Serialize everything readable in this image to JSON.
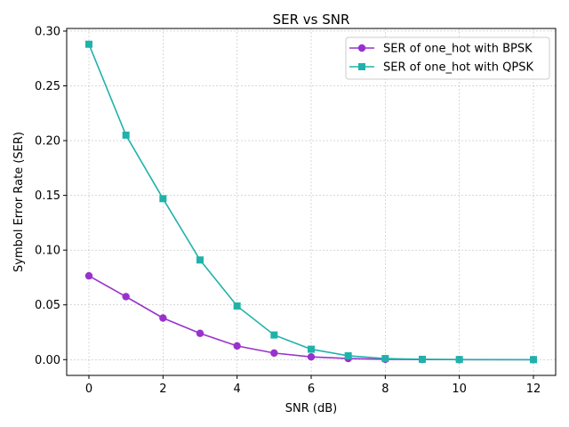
{
  "chart_data": {
    "type": "line",
    "title": "SER vs SNR",
    "xlabel": "SNR (dB)",
    "ylabel": "Symbol Error Rate (SER)",
    "xlim": [
      -0.6,
      12.6
    ],
    "ylim": [
      -0.0144,
      0.3024
    ],
    "xticks": [
      0,
      2,
      4,
      6,
      8,
      10,
      12
    ],
    "yticks": [
      0.0,
      0.05,
      0.1,
      0.15,
      0.2,
      0.25,
      0.3
    ],
    "xtick_labels": [
      "0",
      "2",
      "4",
      "6",
      "8",
      "10",
      "12"
    ],
    "ytick_labels": [
      "0.00",
      "0.05",
      "0.10",
      "0.15",
      "0.20",
      "0.25",
      "0.30"
    ],
    "grid": true,
    "legend_position": "top-right",
    "x": [
      0,
      1,
      2,
      3,
      4,
      5,
      6,
      7,
      8,
      9,
      10,
      12
    ],
    "series": [
      {
        "name": "SER of one_hot with BPSK",
        "color": "#9932CC",
        "marker": "circle",
        "values": [
          0.0765,
          0.0575,
          0.038,
          0.024,
          0.0125,
          0.006,
          0.0025,
          0.001,
          0.0003,
          0.0001,
          0.0,
          0.0
        ]
      },
      {
        "name": "SER of one_hot with QPSK",
        "color": "#20B2AA",
        "marker": "square",
        "values": [
          0.288,
          0.205,
          0.147,
          0.091,
          0.049,
          0.0225,
          0.0095,
          0.0035,
          0.001,
          0.0003,
          0.0001,
          0.0
        ]
      }
    ]
  }
}
